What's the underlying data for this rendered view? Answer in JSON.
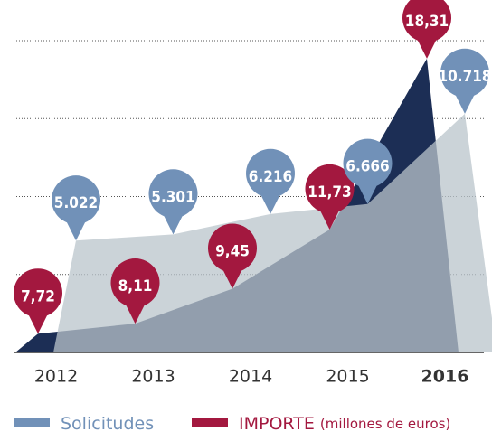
{
  "chart_data": {
    "type": "area",
    "categories": [
      "2012",
      "2013",
      "2014",
      "2015",
      "2016"
    ],
    "series": [
      {
        "name": "IMPORTE",
        "unit": "(millones de euros)",
        "color": "#a3183f",
        "area_color": "#1c2e55",
        "values": [
          7.72,
          8.11,
          9.45,
          11.73,
          18.31
        ],
        "value_labels": [
          "7,72",
          "8,11",
          "9,45",
          "11,73",
          "18,31"
        ]
      },
      {
        "name": "Solicitudes",
        "color": "#7191b8",
        "area_color": "#b9c4cb",
        "axis": "y2",
        "values": [
          5022,
          5301,
          6216,
          6666,
          10718
        ],
        "value_labels": [
          "5.022",
          "5.301",
          "6.216",
          "6.666",
          "10.718"
        ]
      }
    ],
    "ylim": [
      7,
      19
    ],
    "y2lim": [
      0,
      14000
    ],
    "grid": true
  }
}
